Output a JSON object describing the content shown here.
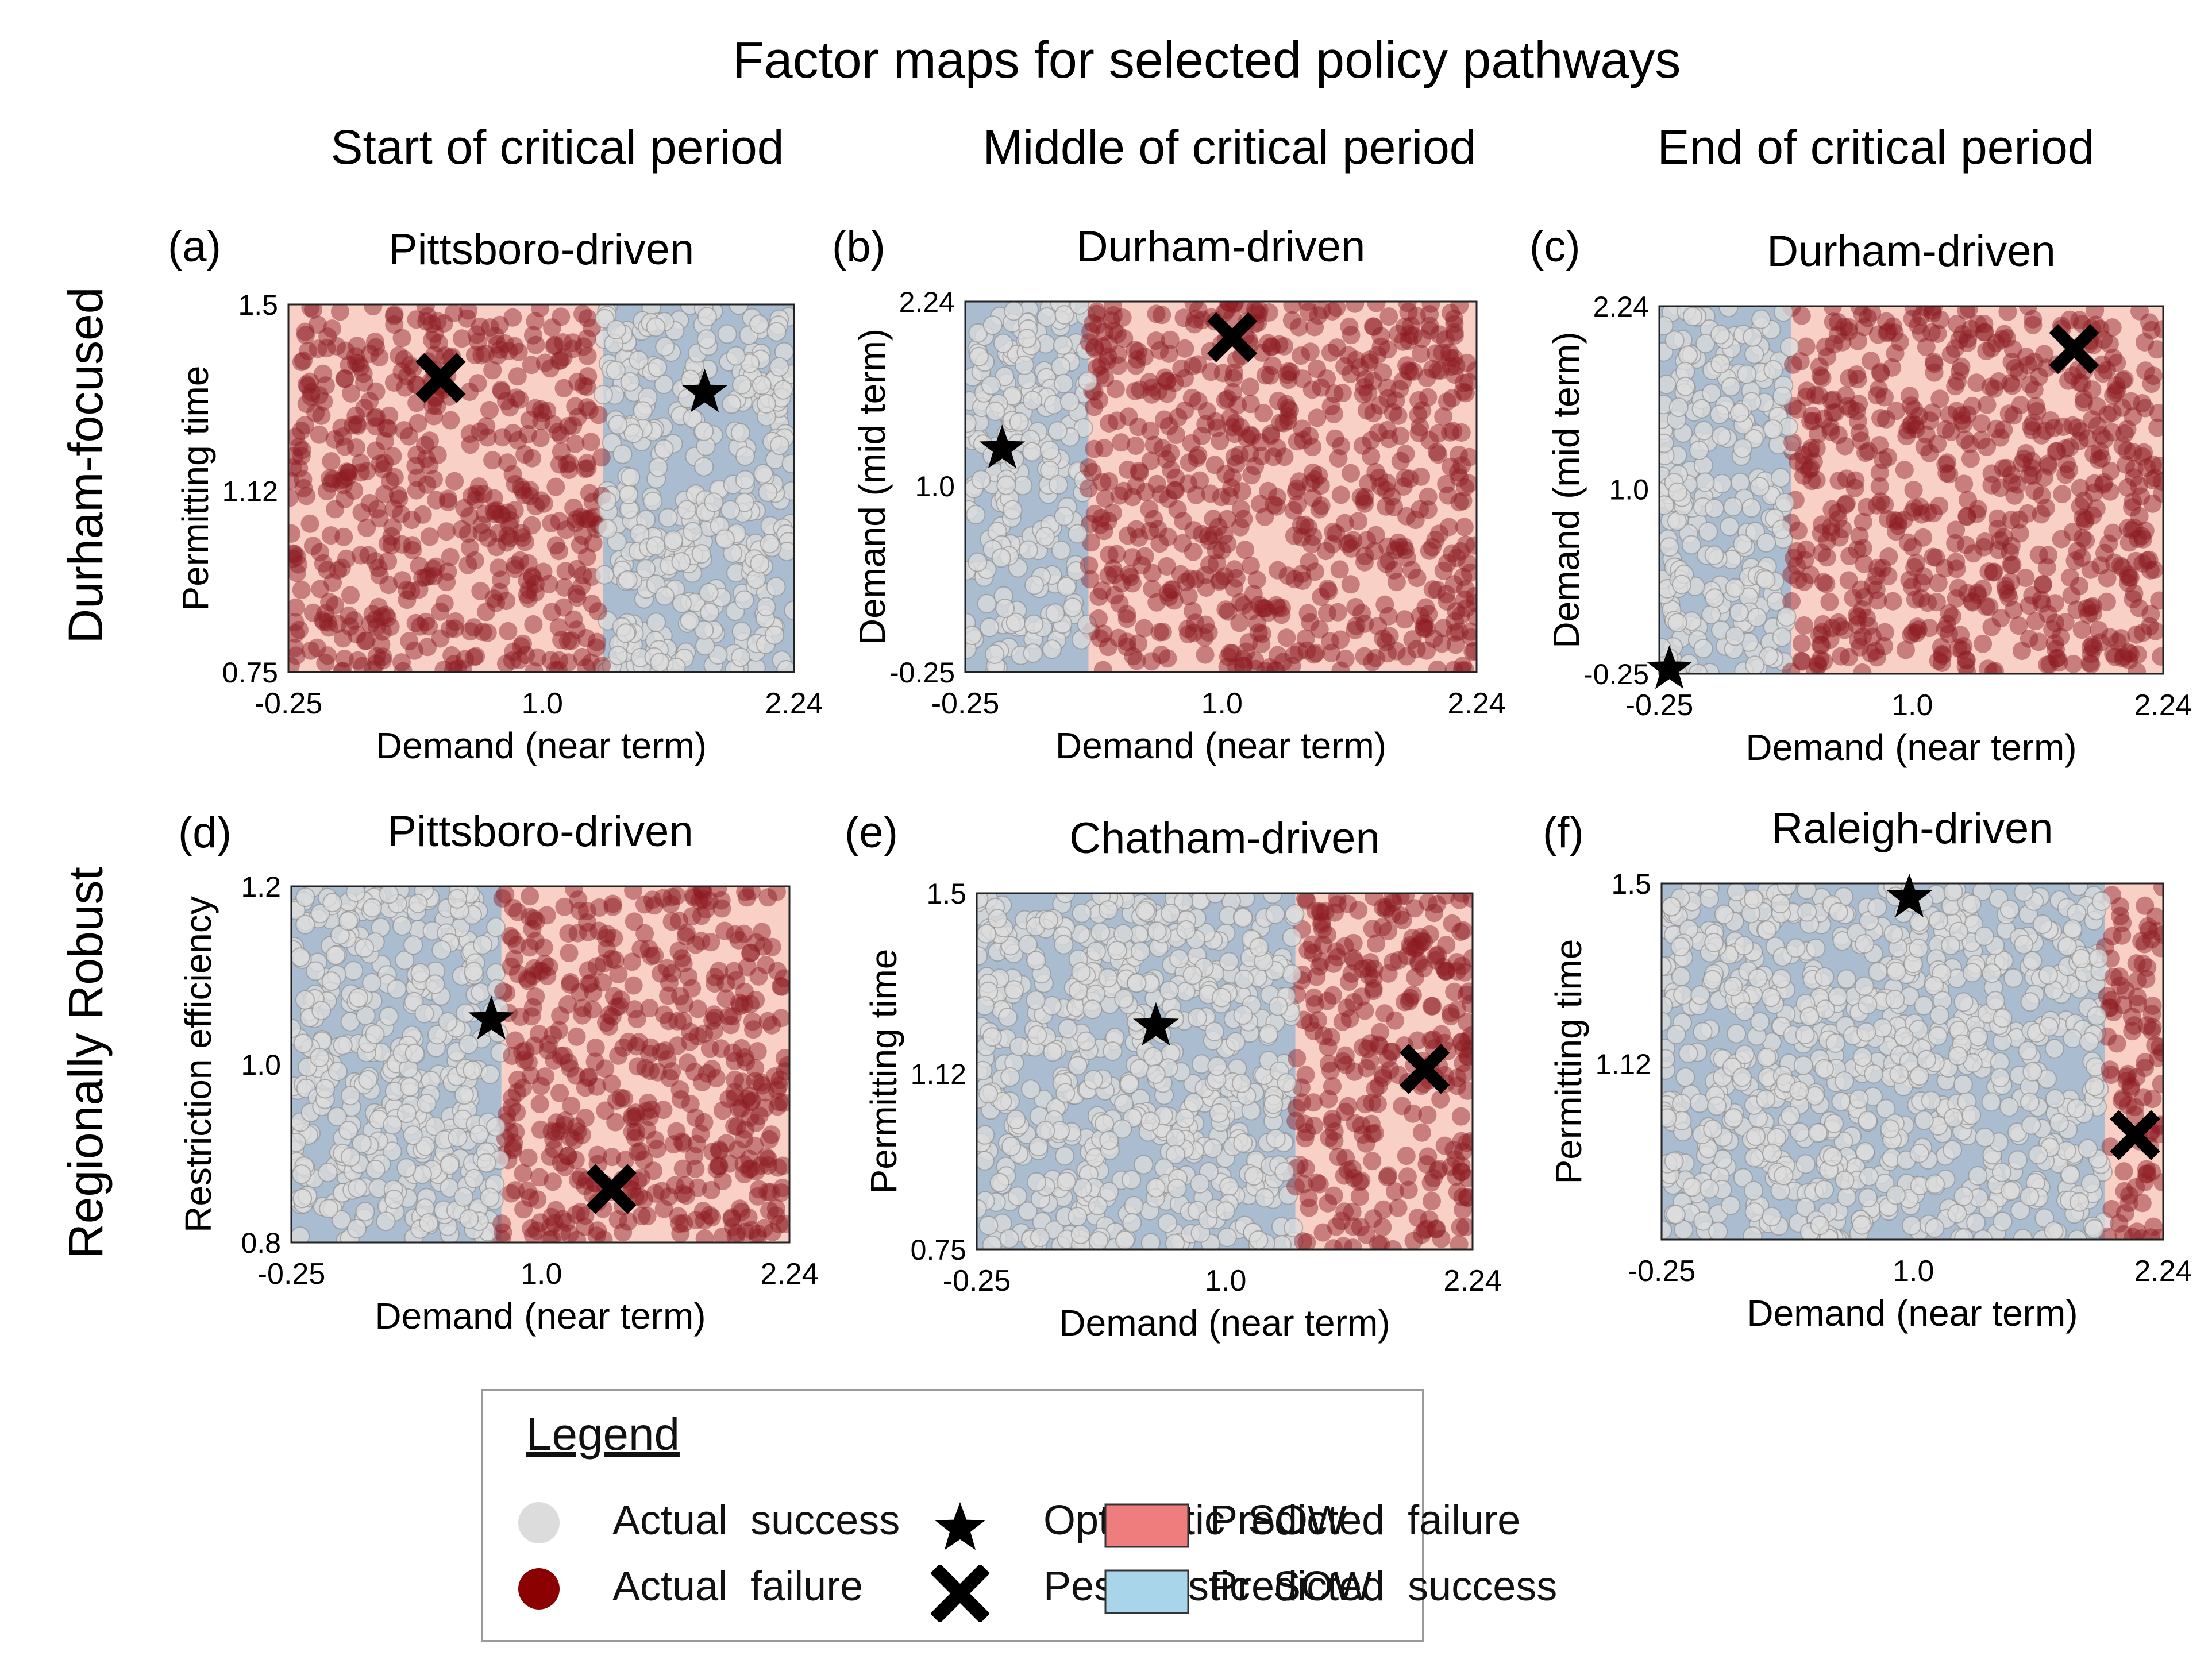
{
  "figure": {
    "title": "Factor maps for selected policy pathways",
    "column_titles": [
      "Start of critical period",
      "Middle of critical period",
      "End of critical period"
    ],
    "row_titles": [
      "Durham-focused",
      "Regionally Robust"
    ]
  },
  "colors": {
    "predicted_failure_bg": "#f8d0c6",
    "predicted_success_bg": "#a9bcd0",
    "actual_success": "#dcdcdc",
    "actual_failure": "#8b1a22",
    "legend_failure_patch": "#ef7d7d",
    "legend_success_patch": "#a8d5ea",
    "marker": "#000000"
  },
  "chart_data": [
    {
      "type": "scatter",
      "panel": "(a)",
      "title": "Pittsboro-driven",
      "xlabel": "Demand (near term)",
      "ylabel": "Permitting time",
      "xlim": [
        -0.25,
        2.24
      ],
      "ylim": [
        0.75,
        1.5
      ],
      "xticks": [
        "-0.25",
        "1.0",
        "2.24"
      ],
      "yticks": [
        "0.75",
        "1.12",
        "1.5"
      ],
      "predicted_success_regions": [
        [
          1.3,
          2.24,
          0.75,
          1.5
        ]
      ],
      "optimistic_sow": [
        1.8,
        1.32
      ],
      "pessimistic_sow": [
        0.5,
        1.35
      ]
    },
    {
      "type": "scatter",
      "panel": "(b)",
      "title": "Durham-driven",
      "xlabel": "Demand (near term)",
      "ylabel": "Demand (mid term)",
      "xlim": [
        -0.25,
        2.24
      ],
      "ylim": [
        -0.25,
        2.24
      ],
      "xticks": [
        "-0.25",
        "1.0",
        "2.24"
      ],
      "yticks": [
        "-0.25",
        "1.0",
        "2.24"
      ],
      "predicted_success_regions": [
        [
          -0.25,
          0.35,
          -0.25,
          2.24
        ]
      ],
      "optimistic_sow": [
        -0.07,
        1.25
      ],
      "pessimistic_sow": [
        1.05,
        2.0
      ]
    },
    {
      "type": "scatter",
      "panel": "(c)",
      "title": "Durham-driven",
      "xlabel": "Demand (near term)",
      "ylabel": "Demand (mid term)",
      "xlim": [
        -0.25,
        2.24
      ],
      "ylim": [
        -0.25,
        2.24
      ],
      "xticks": [
        "-0.25",
        "1.0",
        "2.24"
      ],
      "yticks": [
        "-0.25",
        "1.0",
        "2.24"
      ],
      "predicted_success_regions": [
        [
          -0.25,
          0.4,
          -0.25,
          2.24
        ]
      ],
      "optimistic_sow": [
        -0.2,
        -0.22
      ],
      "pessimistic_sow": [
        1.8,
        1.95
      ]
    },
    {
      "type": "scatter",
      "panel": "(d)",
      "title": "Pittsboro-driven",
      "xlabel": "Demand (near term)",
      "ylabel": "Restriction efficiency",
      "xlim": [
        -0.25,
        2.24
      ],
      "ylim": [
        0.8,
        1.2
      ],
      "xticks": [
        "-0.25",
        "1.0",
        "2.24"
      ],
      "yticks": [
        "0.8",
        "1.0",
        "1.2"
      ],
      "predicted_success_regions": [
        [
          -0.25,
          0.8,
          0.8,
          1.2
        ]
      ],
      "optimistic_sow": [
        0.75,
        1.05
      ],
      "pessimistic_sow": [
        1.35,
        0.86
      ]
    },
    {
      "type": "scatter",
      "panel": "(e)",
      "title": "Chatham-driven",
      "xlabel": "Demand (near term)",
      "ylabel": "Permitting time",
      "xlim": [
        -0.25,
        2.24
      ],
      "ylim": [
        0.75,
        1.5
      ],
      "xticks": [
        "-0.25",
        "1.0",
        "2.24"
      ],
      "yticks": [
        "0.75",
        "1.12",
        "1.5"
      ],
      "predicted_success_regions": [
        [
          -0.25,
          1.35,
          0.75,
          1.5
        ]
      ],
      "optimistic_sow": [
        0.65,
        1.22
      ],
      "pessimistic_sow": [
        2.0,
        1.13
      ]
    },
    {
      "type": "scatter",
      "panel": "(f)",
      "title": "Raleigh-driven",
      "xlabel": "Demand (near term)",
      "ylabel": "Permitting time",
      "xlim": [
        -0.25,
        2.24
      ],
      "ylim": [
        0.75,
        1.5
      ],
      "xticks": [
        "-0.25",
        "1.0",
        "2.24"
      ],
      "yticks": [
        "1.12",
        "1.5"
      ],
      "predicted_success_regions": [
        [
          -0.25,
          1.95,
          0.75,
          1.5
        ]
      ],
      "optimistic_sow": [
        0.98,
        1.47
      ],
      "pessimistic_sow": [
        2.1,
        0.97
      ]
    }
  ],
  "legend": {
    "title": "Legend",
    "actual_success": "Actual  success",
    "actual_failure": "Actual  failure",
    "optimistic": "Optimistic  SOW",
    "pessimistic": "Pessimistic  SOW",
    "predicted_failure": "Predicted  failure",
    "predicted_success": "Predicted  success"
  }
}
